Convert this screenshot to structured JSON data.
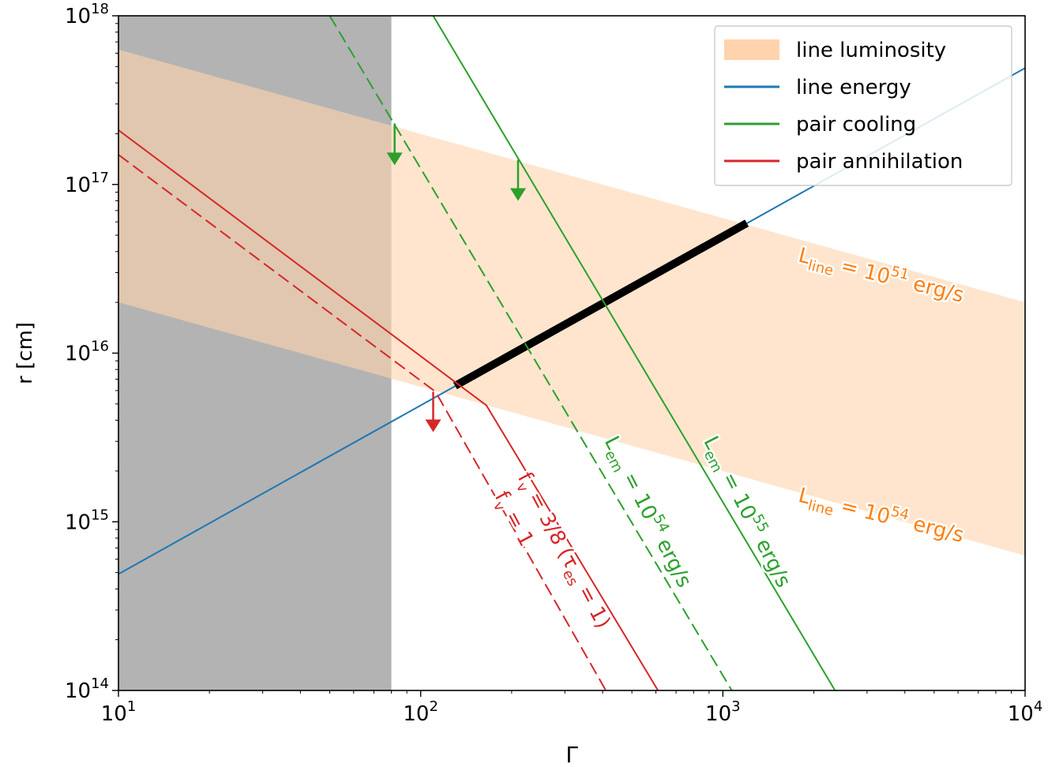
{
  "chart_data": {
    "type": "line",
    "xlabel": "Γ",
    "ylabel": "r [cm]",
    "xscale": "log",
    "yscale": "log",
    "xlim": [
      10,
      10000
    ],
    "ylim": [
      100000000000000.0,
      1e+18
    ],
    "x_ticks": [
      {
        "value": 10,
        "base": "10",
        "exp": "1"
      },
      {
        "value": 100,
        "base": "10",
        "exp": "2"
      },
      {
        "value": 1000,
        "base": "10",
        "exp": "3"
      },
      {
        "value": 10000,
        "base": "10",
        "exp": "4"
      }
    ],
    "y_ticks": [
      {
        "value": 100000000000000.0,
        "base": "10",
        "exp": "14"
      },
      {
        "value": 1000000000000000.0,
        "base": "10",
        "exp": "15"
      },
      {
        "value": 1e+16,
        "base": "10",
        "exp": "16"
      },
      {
        "value": 1e+17,
        "base": "10",
        "exp": "17"
      },
      {
        "value": 1e+18,
        "base": "10",
        "exp": "18"
      }
    ],
    "grid": false,
    "legend_position": "top-right",
    "legend": [
      {
        "label": "line luminosity",
        "kind": "patch",
        "color": "#ffd3ad"
      },
      {
        "label": "line energy",
        "kind": "line",
        "color": "#1f77b4"
      },
      {
        "label": "pair cooling",
        "kind": "line",
        "color": "#2ca02c"
      },
      {
        "label": "pair annihilation",
        "kind": "line",
        "color": "#d62728"
      }
    ],
    "shaded_region": {
      "x": [
        10,
        80
      ],
      "color": "#b3b3b3"
    },
    "band": {
      "color": "#ffd3ad",
      "x": [
        10,
        10000
      ],
      "upper": [
        6.3e+17,
        2e+16
      ],
      "lower": [
        2e+16,
        630000000000000.0
      ]
    },
    "series": [
      {
        "name": "line energy",
        "color": "#1f77b4",
        "dash": "solid",
        "width": 2,
        "x": [
          10,
          10000
        ],
        "y": [
          490000000000000.0,
          4.9e+17
        ]
      },
      {
        "name": "",
        "color": "#000000",
        "dash": "solid",
        "width": 10,
        "x": [
          130,
          1200
        ],
        "y": [
          6400000000000000.0,
          5.9e+16
        ]
      },
      {
        "name": "pair cooling",
        "color": "#2ca02c",
        "dash": "solid",
        "width": 2,
        "x": [
          110,
          2350
        ],
        "y": [
          1e+18,
          100000000000000.0
        ]
      },
      {
        "name": "",
        "color": "#2ca02c",
        "dash": "dashed",
        "width": 2,
        "x": [
          50,
          1070
        ],
        "y": [
          1e+18,
          100000000000000.0
        ]
      },
      {
        "name": "pair annihilation",
        "color": "#d62728",
        "dash": "solid",
        "width": 2,
        "x": [
          10,
          165,
          610
        ],
        "y": [
          2.1e+17,
          4900000000000000.0,
          100000000000000.0
        ]
      },
      {
        "name": "",
        "color": "#d62728",
        "dash": "dashed",
        "width": 2,
        "x": [
          10,
          112,
          410
        ],
        "y": [
          1.5e+17,
          5900000000000000.0,
          100000000000000.0
        ]
      }
    ],
    "arrows": [
      {
        "color": "#2ca02c",
        "x": 82,
        "y_from": 2.3e+17,
        "y_to": 1.3e+17
      },
      {
        "color": "#2ca02c",
        "x": 210,
        "y_from": 1.4e+17,
        "y_to": 8e+16
      },
      {
        "color": "#d62728",
        "x": 110,
        "y_from": 5900000000000000.0,
        "y_to": 3400000000000000.0
      }
    ],
    "annotations": [
      {
        "name": "lline-1e51-label",
        "main": "L",
        "sub": "line",
        "mid": " = 10",
        "sup": "51",
        "tail": " erg/s",
        "color": "#ff7f0e",
        "x": 3300.0,
        "y": 2.65e+16,
        "rotation": 14
      },
      {
        "name": "lline-1e54-label",
        "main": "L",
        "sub": "line",
        "mid": " = 10",
        "sup": "54",
        "tail": " erg/s",
        "color": "#ff7f0e",
        "x": 3300.0,
        "y": 1000000000000000.0,
        "rotation": 14
      },
      {
        "name": "lem-1e54-label",
        "main": "L",
        "sub": "em",
        "mid": " = 10",
        "sup": "54",
        "tail": " erg/s",
        "color": "#2ca02c",
        "x": 540,
        "y": 1100000000000000.0,
        "rotation": 63
      },
      {
        "name": "lem-1e55-label",
        "main": "L",
        "sub": "em",
        "mid": " = 10",
        "sup": "55",
        "tail": " erg/s",
        "color": "#2ca02c",
        "x": 1150,
        "y": 1100000000000000.0,
        "rotation": 63
      },
      {
        "name": "fv-3-8-label",
        "main": "f",
        "sub": "v",
        "mid": " = 3/8 (τ",
        "sup": "",
        "sub2": "es",
        "tail": " = 1)",
        "color": "#d62728",
        "x": 285,
        "y": 650000000000000.0,
        "rotation": 62
      },
      {
        "name": "fv-1-label",
        "main": "f",
        "sub": "v",
        "mid": " = 1",
        "sup": "",
        "tail": "",
        "color": "#d62728",
        "x": 195,
        "y": 1000000000000000.0,
        "rotation": 62
      }
    ]
  }
}
